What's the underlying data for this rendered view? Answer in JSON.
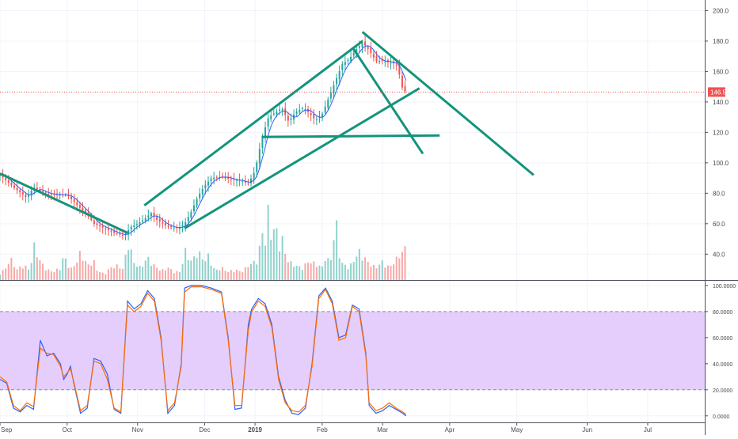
{
  "chart_data": [
    {
      "type": "candlestick",
      "xlim": [
        0,
        210
      ],
      "x_ticks": [
        {
          "x": 0,
          "label": "Sep"
        },
        {
          "x": 20,
          "label": "Oct"
        },
        {
          "x": 41,
          "label": "Nov"
        },
        {
          "x": 61,
          "label": "Dec"
        },
        {
          "x": 76,
          "label": "2019"
        },
        {
          "x": 96,
          "label": "Feb"
        },
        {
          "x": 114,
          "label": "Mar"
        },
        {
          "x": 134,
          "label": "Apr"
        },
        {
          "x": 154,
          "label": "May"
        },
        {
          "x": 175,
          "label": "Jun"
        },
        {
          "x": 193,
          "label": "Jul"
        }
      ],
      "ylim": [
        23,
        207
      ],
      "y_ticks": [
        "200.0",
        "180.0",
        "160.0",
        "140.0",
        "120.0",
        "100.0",
        "80.0",
        "60.0",
        "40.0"
      ],
      "current_price": {
        "value": 146.5,
        "label": "146.5",
        "color": "#ef5350"
      },
      "close_points": [
        [
          0,
          92
        ],
        [
          4,
          84
        ],
        [
          8,
          77
        ],
        [
          10,
          84
        ],
        [
          13,
          80
        ],
        [
          17,
          79
        ],
        [
          20,
          79
        ],
        [
          23,
          72
        ],
        [
          26,
          66
        ],
        [
          28,
          60
        ],
        [
          31,
          57
        ],
        [
          34,
          54
        ],
        [
          37,
          52
        ],
        [
          39,
          58
        ],
        [
          41,
          60
        ],
        [
          43,
          63
        ],
        [
          45,
          67
        ],
        [
          47,
          62
        ],
        [
          50,
          58
        ],
        [
          53,
          57
        ],
        [
          55,
          60
        ],
        [
          57,
          68
        ],
        [
          59,
          78
        ],
        [
          61,
          85
        ],
        [
          63,
          90
        ],
        [
          66,
          91
        ],
        [
          69,
          89
        ],
        [
          72,
          88
        ],
        [
          74,
          86
        ],
        [
          76,
          95
        ],
        [
          78,
          116
        ],
        [
          80,
          130
        ],
        [
          82,
          133
        ],
        [
          84,
          136
        ],
        [
          86,
          127
        ],
        [
          88,
          133
        ],
        [
          90,
          136
        ],
        [
          92,
          133
        ],
        [
          94,
          128
        ],
        [
          96,
          132
        ],
        [
          98,
          143
        ],
        [
          100,
          154
        ],
        [
          102,
          165
        ],
        [
          104,
          168
        ],
        [
          106,
          174
        ],
        [
          108,
          179
        ],
        [
          110,
          174
        ],
        [
          112,
          167
        ],
        [
          114,
          167
        ],
        [
          116,
          166
        ],
        [
          118,
          165
        ],
        [
          119,
          158
        ],
        [
          120,
          148
        ],
        [
          121,
          146.5
        ]
      ],
      "volume_points": [
        [
          0,
          7
        ],
        [
          2,
          12
        ],
        [
          3,
          22
        ],
        [
          5,
          10
        ],
        [
          7,
          15
        ],
        [
          9,
          9
        ],
        [
          10,
          35
        ],
        [
          12,
          18
        ],
        [
          14,
          10
        ],
        [
          16,
          8
        ],
        [
          18,
          12
        ],
        [
          19,
          24
        ],
        [
          21,
          10
        ],
        [
          23,
          18
        ],
        [
          24,
          28
        ],
        [
          26,
          14
        ],
        [
          28,
          18
        ],
        [
          29,
          9
        ],
        [
          31,
          6
        ],
        [
          33,
          12
        ],
        [
          35,
          14
        ],
        [
          37,
          10
        ],
        [
          38,
          42
        ],
        [
          40,
          16
        ],
        [
          42,
          12
        ],
        [
          44,
          22
        ],
        [
          46,
          14
        ],
        [
          48,
          9
        ],
        [
          50,
          12
        ],
        [
          52,
          8
        ],
        [
          54,
          8
        ],
        [
          55,
          30
        ],
        [
          57,
          18
        ],
        [
          59,
          28
        ],
        [
          61,
          18
        ],
        [
          62,
          24
        ],
        [
          64,
          9
        ],
        [
          66,
          12
        ],
        [
          68,
          8
        ],
        [
          70,
          10
        ],
        [
          72,
          8
        ],
        [
          74,
          14
        ],
        [
          76,
          18
        ],
        [
          77,
          22
        ],
        [
          78,
          48
        ],
        [
          79,
          36
        ],
        [
          80,
          70
        ],
        [
          81,
          36
        ],
        [
          82,
          58
        ],
        [
          83,
          34
        ],
        [
          84,
          42
        ],
        [
          85,
          26
        ],
        [
          86,
          18
        ],
        [
          88,
          14
        ],
        [
          90,
          12
        ],
        [
          92,
          18
        ],
        [
          94,
          16
        ],
        [
          96,
          12
        ],
        [
          97,
          24
        ],
        [
          98,
          18
        ],
        [
          99,
          22
        ],
        [
          100,
          64
        ],
        [
          101,
          28
        ],
        [
          102,
          16
        ],
        [
          104,
          12
        ],
        [
          106,
          22
        ],
        [
          107,
          28
        ],
        [
          108,
          24
        ],
        [
          110,
          16
        ],
        [
          112,
          12
        ],
        [
          114,
          18
        ],
        [
          116,
          12
        ],
        [
          118,
          20
        ],
        [
          120,
          28
        ],
        [
          121,
          32
        ]
      ],
      "colors": {
        "up": "#26a69a",
        "down": "#ef5350",
        "ma": "#2962ff",
        "trendlines": "#14947b"
      },
      "trendlines": [
        {
          "from": [
            0,
            93
          ],
          "to": [
            38,
            54
          ]
        },
        {
          "from": [
            43,
            72
          ],
          "to": [
            108,
            180
          ]
        },
        {
          "from": [
            55,
            57
          ],
          "to": [
            125,
            149
          ]
        },
        {
          "from": [
            78,
            117
          ],
          "to": [
            131,
            118
          ]
        },
        {
          "from": [
            105,
            176
          ],
          "to": [
            126,
            106
          ]
        },
        {
          "from": [
            108,
            186
          ],
          "to": [
            159,
            92
          ]
        }
      ],
      "grid": true
    },
    {
      "type": "line",
      "xlim": [
        0,
        210
      ],
      "ylim": [
        -5,
        103
      ],
      "y_ticks": [
        "100.0000",
        "80.0000",
        "60.0000",
        "40.0000",
        "20.0000",
        "0.0000"
      ],
      "band": {
        "from": 20,
        "to": 80,
        "color": "#e1c6fb"
      },
      "series": [
        {
          "color": "#2962ff",
          "points": [
            [
              0,
              28
            ],
            [
              2,
              25
            ],
            [
              4,
              6
            ],
            [
              6,
              3
            ],
            [
              8,
              8
            ],
            [
              10,
              5
            ],
            [
              12,
              58
            ],
            [
              14,
              46
            ],
            [
              16,
              48
            ],
            [
              18,
              40
            ],
            [
              19,
              28
            ],
            [
              20,
              32
            ],
            [
              21,
              38
            ],
            [
              22,
              25
            ],
            [
              24,
              2
            ],
            [
              26,
              6
            ],
            [
              28,
              44
            ],
            [
              30,
              42
            ],
            [
              32,
              32
            ],
            [
              34,
              5
            ],
            [
              36,
              2
            ],
            [
              38,
              88
            ],
            [
              40,
              82
            ],
            [
              42,
              86
            ],
            [
              44,
              96
            ],
            [
              46,
              90
            ],
            [
              48,
              60
            ],
            [
              50,
              2
            ],
            [
              52,
              8
            ],
            [
              54,
              40
            ],
            [
              55,
              98
            ],
            [
              57,
              100
            ],
            [
              60,
              100
            ],
            [
              63,
              98
            ],
            [
              66,
              95
            ],
            [
              68,
              60
            ],
            [
              70,
              5
            ],
            [
              72,
              6
            ],
            [
              74,
              70
            ],
            [
              75,
              82
            ],
            [
              77,
              90
            ],
            [
              79,
              86
            ],
            [
              81,
              70
            ],
            [
              83,
              30
            ],
            [
              85,
              12
            ],
            [
              87,
              2
            ],
            [
              89,
              1
            ],
            [
              91,
              6
            ],
            [
              93,
              40
            ],
            [
              95,
              92
            ],
            [
              97,
              98
            ],
            [
              99,
              88
            ],
            [
              101,
              60
            ],
            [
              103,
              62
            ],
            [
              105,
              85
            ],
            [
              107,
              82
            ],
            [
              109,
              48
            ],
            [
              110,
              8
            ],
            [
              112,
              2
            ],
            [
              114,
              4
            ],
            [
              116,
              8
            ],
            [
              118,
              5
            ],
            [
              120,
              2
            ],
            [
              121,
              0
            ]
          ]
        },
        {
          "color": "#ff6d00",
          "points": [
            [
              0,
              30
            ],
            [
              2,
              26
            ],
            [
              4,
              8
            ],
            [
              6,
              4
            ],
            [
              8,
              10
            ],
            [
              10,
              7
            ],
            [
              12,
              52
            ],
            [
              14,
              48
            ],
            [
              16,
              47
            ],
            [
              18,
              38
            ],
            [
              19,
              30
            ],
            [
              20,
              33
            ],
            [
              21,
              36
            ],
            [
              22,
              26
            ],
            [
              24,
              4
            ],
            [
              26,
              8
            ],
            [
              28,
              42
            ],
            [
              30,
              40
            ],
            [
              32,
              28
            ],
            [
              34,
              6
            ],
            [
              36,
              3
            ],
            [
              38,
              85
            ],
            [
              40,
              80
            ],
            [
              42,
              84
            ],
            [
              44,
              94
            ],
            [
              46,
              88
            ],
            [
              48,
              58
            ],
            [
              50,
              4
            ],
            [
              52,
              10
            ],
            [
              54,
              38
            ],
            [
              55,
              95
            ],
            [
              57,
              99
            ],
            [
              60,
              99
            ],
            [
              63,
              97
            ],
            [
              66,
              94
            ],
            [
              68,
              58
            ],
            [
              70,
              8
            ],
            [
              72,
              8
            ],
            [
              74,
              66
            ],
            [
              75,
              80
            ],
            [
              77,
              88
            ],
            [
              79,
              84
            ],
            [
              81,
              68
            ],
            [
              83,
              28
            ],
            [
              85,
              10
            ],
            [
              87,
              4
            ],
            [
              89,
              3
            ],
            [
              91,
              8
            ],
            [
              93,
              38
            ],
            [
              95,
              90
            ],
            [
              97,
              97
            ],
            [
              99,
              86
            ],
            [
              101,
              58
            ],
            [
              103,
              60
            ],
            [
              105,
              84
            ],
            [
              107,
              80
            ],
            [
              109,
              46
            ],
            [
              110,
              10
            ],
            [
              112,
              4
            ],
            [
              114,
              6
            ],
            [
              116,
              10
            ],
            [
              118,
              6
            ],
            [
              120,
              3
            ],
            [
              121,
              1
            ]
          ]
        }
      ],
      "grid": true
    }
  ]
}
